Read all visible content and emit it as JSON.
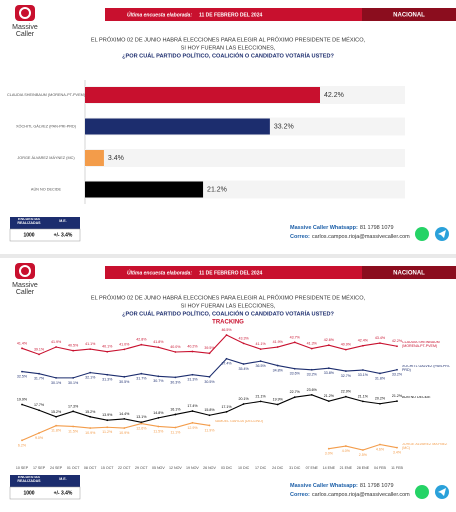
{
  "slides": [
    {
      "brand": [
        "Massive",
        "Caller"
      ],
      "survey_label": "Última encuesta elaborada:",
      "survey_date": "11 DE FEBRERO DEL 2024",
      "region": "NACIONAL",
      "question": [
        "EL PRÓXIMO 02 DE JUNIO HABRÁ ELECCIONES PARA ELEGIR AL PRÓXIMO PRESIDENTE DE MÉXICO,",
        "SI HOY FUERAN LAS ELECCIONES,",
        "¿POR CUÁL PARTIDO POLÍTICO, COALICIÓN O CANDIDATO VOTARÍA USTED?"
      ],
      "table": {
        "headers": [
          "ENCUESTAS REALIZADAS",
          "M.E."
        ],
        "row": [
          "1000",
          "+/- 3.4%"
        ]
      },
      "footer": {
        "whatsapp_label": "Massive Caller Whatsapp:",
        "whatsapp": "81 1798 1079",
        "email_label": "Correo:",
        "email": "carlos.campos.rioja@massivecaller.com"
      }
    },
    {
      "brand": [
        "Massive",
        "Caller"
      ],
      "survey_label": "Última encuesta elaborada:",
      "survey_date": "11 DE FEBRERO DEL 2024",
      "region": "NACIONAL",
      "question": [
        "EL PRÓXIMO 02 DE JUNIO HABRÁ ELECCIONES PARA ELEGIR AL PRÓXIMO PRESIDENTE DE MÉXICO,",
        "SI HOY FUERAN LAS ELECCIONES,",
        "¿POR CUÁL PARTIDO POLÍTICO, COALICIÓN O CANDIDATO VOTARÍA USTED?"
      ],
      "table": {
        "headers": [
          "ENCUESTAS REALIZADAS",
          "M.E."
        ],
        "row": [
          "1000",
          "+/- 3.4%"
        ]
      },
      "footer": {
        "whatsapp_label": "Massive Caller Whatsapp:",
        "whatsapp": "81 1798 1079",
        "email_label": "Correo:",
        "email": "carlos.campos.rioja@massivecaller.com"
      }
    }
  ],
  "chart_data": [
    {
      "type": "bar",
      "orientation": "horizontal",
      "categories": [
        "CLAUDIA SHEINBAUM (MORENA-PT-PVEM)",
        "XÓCHITL GÁLVEZ (PAN-PRI-PRD)",
        "JORGE ÁLVAREZ MÁYNEZ (MC)",
        "AÚN NO DECIDE"
      ],
      "values": [
        42.2,
        33.2,
        3.4,
        21.2
      ],
      "value_labels": [
        "42.2%",
        "33.2%",
        "3.4%",
        "21.2%"
      ],
      "colors": [
        "#c8102e",
        "#1c2d6e",
        "#f39c4a",
        "#000000"
      ]
    },
    {
      "type": "line",
      "subtitle": "TRACKING",
      "x": [
        "10 SEP",
        "17 SEP",
        "24 SEP",
        "01 OCT",
        "08 OCT",
        "15 OCT",
        "22 OCT",
        "29 OCT",
        "05 NOV",
        "12 NOV",
        "19 NOV",
        "26 NOV",
        "03 DIC",
        "10 DIC",
        "17 DIC",
        "24 DIC",
        "31 DIC",
        "07 ENE",
        "14 ENE",
        "21 ENE",
        "28 ENE",
        "04 FEB",
        "11 FEB"
      ],
      "series": [
        {
          "name": "CLAUDIA SHEINBAUM (MORENA-PT-PVEM)",
          "color": "#c8102e",
          "values": [
            41.4,
            39.1,
            41.9,
            40.5,
            41.1,
            40.1,
            41.0,
            42.8,
            41.8,
            40.0,
            40.2,
            39.5,
            46.5,
            43.3,
            41.1,
            41.9,
            43.7,
            41.3,
            42.6,
            40.9,
            42.4,
            43.4,
            42.2
          ],
          "value_labels": [
            "41.4%",
            "39.1%",
            "41.9%",
            "40.5%",
            "41.1%",
            "40.1%",
            "41.0%",
            "42.8%",
            "41.8%",
            "40.0%",
            "40.2%",
            "39.5%",
            "46.5%",
            "43.3%",
            "41.1%",
            "41.9%",
            "43.7%",
            "41.3%",
            "42.6%",
            "40.9%",
            "42.4%",
            "43.4%",
            "42.2%"
          ]
        },
        {
          "name": "XÓCHITL GÁLVEZ (PAN-PRI-PRD)",
          "color": "#1c2d6e",
          "values": [
            32.5,
            31.7,
            30.1,
            30.1,
            32.1,
            31.3,
            30.5,
            31.7,
            30.7,
            30.3,
            31.3,
            30.5,
            37.4,
            35.4,
            36.5,
            34.8,
            33.6,
            33.2,
            33.8,
            32.7,
            33.1,
            31.8,
            33.2
          ],
          "value_labels": [
            "32.5%",
            "31.7%",
            "30.1%",
            "30.1%",
            "32.1%",
            "31.3%",
            "30.5%",
            "31.7%",
            "30.7%",
            "30.3%",
            "31.3%",
            "30.5%",
            "37.4%",
            "35.4%",
            "36.5%",
            "34.8%",
            "33.6%",
            "33.2%",
            "33.8%",
            "32.7%",
            "33.1%",
            "31.8%",
            "33.2%"
          ]
        },
        {
          "name": "AÚN NO DECIDE",
          "color": "#000000",
          "values": [
            19.9,
            17.7,
            15.2,
            17.3,
            15.2,
            13.9,
            14.4,
            13.1,
            14.8,
            16.1,
            17.4,
            15.8,
            17.1,
            20.1,
            21.1,
            19.9,
            22.7,
            23.6,
            21.2,
            22.9,
            21.1,
            20.2,
            21.2
          ],
          "value_labels": [
            "19.9%",
            "17.7%",
            "15.2%",
            "17.3%",
            "15.2%",
            "13.9%",
            "14.4%",
            "13.1%",
            "14.8%",
            "16.1%",
            "17.4%",
            "15.8%",
            "17.1%",
            "20.1%",
            "21.1%",
            "19.9%",
            "22.7%",
            "23.6%",
            "21.2%",
            "22.9%",
            "21.1%",
            "20.2%",
            "21.2%"
          ]
        },
        {
          "name": "SAMUEL GARCÍA (DECLINÓ)",
          "color": "#f39c4a",
          "values": [
            6.2,
            9.0,
            11.8,
            11.5,
            10.9,
            11.2,
            10.9,
            12.6,
            11.5,
            11.1,
            12.9,
            11.9,
            null,
            null,
            null,
            null,
            null,
            null,
            null,
            null,
            null,
            null,
            null
          ],
          "value_labels": [
            "6.2%",
            "9.0%",
            "11.8%",
            "11.5%",
            "10.9%",
            "11.2%",
            "10.9%",
            "12.6%",
            "11.5%",
            "11.1%",
            "12.9%",
            "11.9%",
            null,
            null,
            null,
            null,
            null,
            null,
            null,
            null,
            null,
            null,
            null
          ]
        },
        {
          "name": "JORGE ÁLVAREZ MÁYNEZ (MC)",
          "color": "#f39c4a",
          "values": [
            null,
            null,
            null,
            null,
            null,
            null,
            null,
            null,
            null,
            null,
            null,
            null,
            null,
            null,
            null,
            null,
            null,
            null,
            3.0,
            4.0,
            2.5,
            4.6,
            3.4
          ],
          "value_labels": [
            null,
            null,
            null,
            null,
            null,
            null,
            null,
            null,
            null,
            null,
            null,
            null,
            null,
            null,
            null,
            null,
            null,
            null,
            "3.0%",
            "4.0%",
            "2.5%",
            "4.6%",
            "3.4%"
          ]
        }
      ]
    }
  ]
}
